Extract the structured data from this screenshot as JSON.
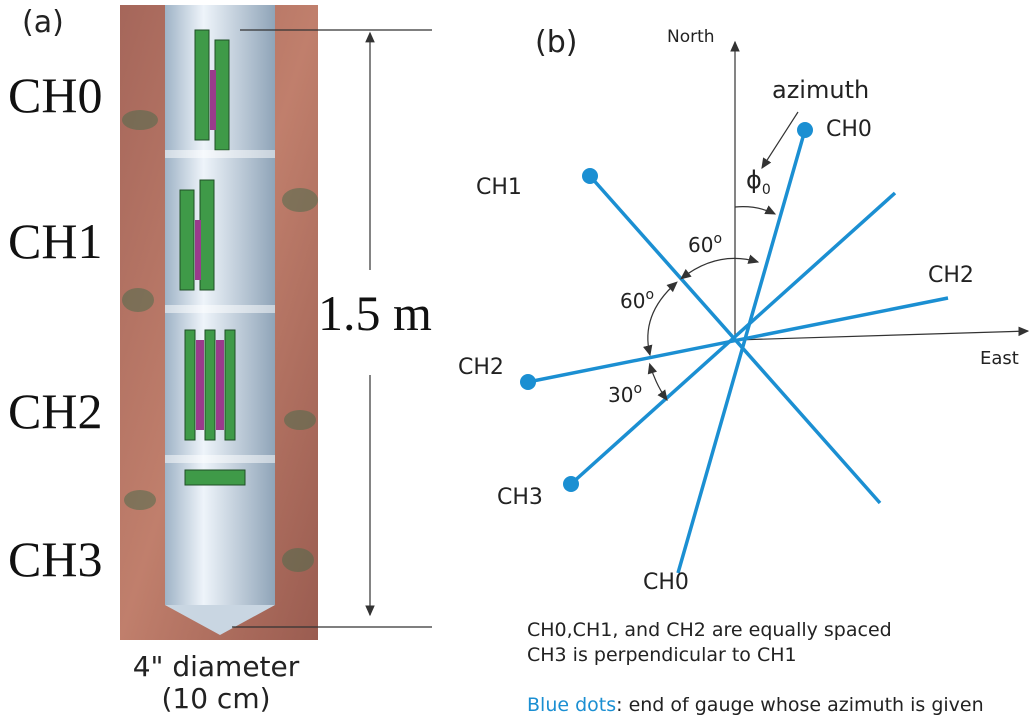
{
  "panel_a": {
    "label": "(a)",
    "channels": [
      "CH0",
      "CH1",
      "CH2",
      "CH3"
    ],
    "length": "1.5 m",
    "diameter": [
      "4\" diameter",
      "(10 cm)"
    ]
  },
  "panel_b": {
    "label": "(b)",
    "north": "North",
    "east": "East",
    "azimuth": "azimuth",
    "phi": "ϕ",
    "phi_sub": "0",
    "gauges": {
      "ch0_top": "CH0",
      "ch1": "CH1",
      "ch2_right": "CH2",
      "ch2_left": "CH2",
      "ch3": "CH3",
      "ch0_bottom": "CH0"
    },
    "angles": [
      {
        "value": "60",
        "unit": "o"
      },
      {
        "value": "60",
        "unit": "o"
      },
      {
        "value": "30",
        "unit": "o"
      }
    ],
    "notes": [
      "CH0,CH1, and CH2 are equally spaced",
      "CH3 is perpendicular to CH1"
    ],
    "legend": {
      "key": "Blue dots",
      "text": ": end of gauge whose azimuth is given"
    }
  }
}
